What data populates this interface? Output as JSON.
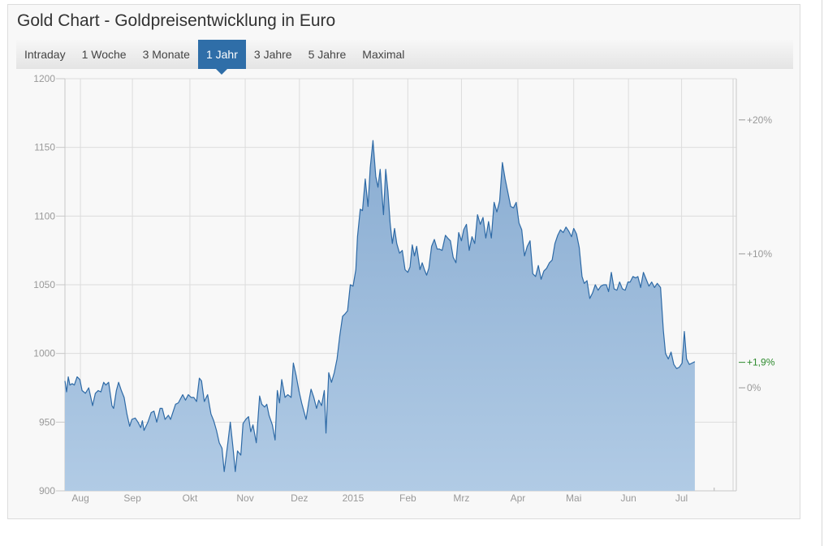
{
  "title": "Gold Chart - Goldpreisentwicklung in Euro",
  "tabs": [
    {
      "label": "Intraday"
    },
    {
      "label": "1 Woche"
    },
    {
      "label": "3 Monate"
    },
    {
      "label": "1 Jahr",
      "active": true
    },
    {
      "label": "3 Jahre"
    },
    {
      "label": "5 Jahre"
    },
    {
      "label": "Maximal"
    }
  ],
  "colors": {
    "line": "#2e6aa6",
    "area_top": "#8aadd2",
    "area_bottom": "#b1cbe5",
    "active_tab": "#2f6ea8",
    "change_label": "#2e8b2e"
  },
  "chart_data": {
    "type": "area",
    "title": "",
    "xlabel": "",
    "ylabel": "",
    "ylim": [
      900,
      1200
    ],
    "y_ticks": [
      900,
      950,
      1000,
      1050,
      1100,
      1150,
      1200
    ],
    "x_tick_labels": [
      "Aug",
      "Sep",
      "Okt",
      "Nov",
      "Dez",
      "2015",
      "Feb",
      "Mrz",
      "Apr",
      "Mai",
      "Jun",
      "Jul"
    ],
    "right_axis": {
      "baseline": 975,
      "ticks": [
        "+20%",
        "+10%",
        "0%"
      ],
      "ticks_pct": [
        20,
        10,
        0
      ]
    },
    "current_change_label": "+1,9%",
    "current_change_pct": 1.9,
    "grid": true,
    "legend": "none",
    "x_domain": [
      0,
      12.14
    ],
    "x_tick_positions": [
      0.28,
      1.22,
      2.26,
      3.26,
      4.24,
      5.21,
      6.2,
      7.17,
      8.19,
      9.2,
      10.19,
      11.15
    ],
    "series": [
      {
        "values": [
          [
            0,
            980
          ],
          [
            0.03,
            972
          ],
          [
            0.06,
            983
          ],
          [
            0.09,
            977
          ],
          [
            0.13,
            978
          ],
          [
            0.17,
            977
          ],
          [
            0.22,
            983
          ],
          [
            0.27,
            981
          ],
          [
            0.31,
            973
          ],
          [
            0.37,
            971
          ],
          [
            0.43,
            975
          ],
          [
            0.5,
            962
          ],
          [
            0.55,
            971
          ],
          [
            0.6,
            973
          ],
          [
            0.65,
            972
          ],
          [
            0.7,
            979
          ],
          [
            0.74,
            977
          ],
          [
            0.79,
            979
          ],
          [
            0.85,
            962
          ],
          [
            0.88,
            960
          ],
          [
            0.93,
            973
          ],
          [
            0.97,
            979
          ],
          [
            1.02,
            973
          ],
          [
            1.07,
            968
          ],
          [
            1.12,
            956
          ],
          [
            1.17,
            947
          ],
          [
            1.21,
            952
          ],
          [
            1.27,
            953
          ],
          [
            1.32,
            950
          ],
          [
            1.37,
            946
          ],
          [
            1.4,
            951
          ],
          [
            1.43,
            944
          ],
          [
            1.5,
            950
          ],
          [
            1.56,
            957
          ],
          [
            1.61,
            958
          ],
          [
            1.66,
            950
          ],
          [
            1.72,
            960
          ],
          [
            1.76,
            960
          ],
          [
            1.81,
            952
          ],
          [
            1.87,
            955
          ],
          [
            1.91,
            952
          ],
          [
            2.0,
            963
          ],
          [
            2.05,
            964
          ],
          [
            2.09,
            967
          ],
          [
            2.13,
            970
          ],
          [
            2.18,
            966
          ],
          [
            2.23,
            970
          ],
          [
            2.28,
            968
          ],
          [
            2.33,
            968
          ],
          [
            2.38,
            965
          ],
          [
            2.43,
            982
          ],
          [
            2.47,
            980
          ],
          [
            2.52,
            965
          ],
          [
            2.58,
            970
          ],
          [
            2.64,
            956
          ],
          [
            2.69,
            951
          ],
          [
            2.74,
            944
          ],
          [
            2.79,
            935
          ],
          [
            2.84,
            931
          ],
          [
            2.88,
            914
          ],
          [
            2.94,
            933
          ],
          [
            2.99,
            950
          ],
          [
            3.04,
            931
          ],
          [
            3.08,
            914
          ],
          [
            3.12,
            929
          ],
          [
            3.18,
            926
          ],
          [
            3.22,
            949
          ],
          [
            3.27,
            952
          ],
          [
            3.32,
            954
          ],
          [
            3.36,
            943
          ],
          [
            3.4,
            948
          ],
          [
            3.46,
            935
          ],
          [
            3.52,
            969
          ],
          [
            3.56,
            963
          ],
          [
            3.61,
            961
          ],
          [
            3.65,
            963
          ],
          [
            3.69,
            955
          ],
          [
            3.75,
            948
          ],
          [
            3.8,
            937
          ],
          [
            3.84,
            973
          ],
          [
            3.88,
            964
          ],
          [
            3.92,
            981
          ],
          [
            3.98,
            968
          ],
          [
            4.03,
            970
          ],
          [
            4.09,
            968
          ],
          [
            4.13,
            993
          ],
          [
            4.18,
            984
          ],
          [
            4.23,
            973
          ],
          [
            4.28,
            964
          ],
          [
            4.32,
            958
          ],
          [
            4.36,
            952
          ],
          [
            4.41,
            965
          ],
          [
            4.45,
            974
          ],
          [
            4.5,
            968
          ],
          [
            4.55,
            960
          ],
          [
            4.59,
            966
          ],
          [
            4.64,
            962
          ],
          [
            4.69,
            973
          ],
          [
            4.72,
            942
          ],
          [
            4.77,
            986
          ],
          [
            4.82,
            979
          ],
          [
            4.87,
            986
          ],
          [
            4.92,
            996
          ],
          [
            4.97,
            1013
          ],
          [
            5.02,
            1027
          ],
          [
            5.07,
            1029
          ],
          [
            5.11,
            1031
          ],
          [
            5.16,
            1050
          ],
          [
            5.21,
            1049
          ],
          [
            5.26,
            1061
          ],
          [
            5.29,
            1085
          ],
          [
            5.34,
            1105
          ],
          [
            5.38,
            1104
          ],
          [
            5.43,
            1127
          ],
          [
            5.48,
            1107
          ],
          [
            5.52,
            1135
          ],
          [
            5.57,
            1155
          ],
          [
            5.62,
            1129
          ],
          [
            5.66,
            1121
          ],
          [
            5.7,
            1134
          ],
          [
            5.76,
            1101
          ],
          [
            5.8,
            1134
          ],
          [
            5.84,
            1118
          ],
          [
            5.88,
            1095
          ],
          [
            5.92,
            1080
          ],
          [
            5.96,
            1091
          ],
          [
            6.0,
            1080
          ],
          [
            6.05,
            1073
          ],
          [
            6.1,
            1075
          ],
          [
            6.15,
            1061
          ],
          [
            6.2,
            1059
          ],
          [
            6.24,
            1063
          ],
          [
            6.28,
            1079
          ],
          [
            6.32,
            1071
          ],
          [
            6.36,
            1078
          ],
          [
            6.42,
            1061
          ],
          [
            6.46,
            1066
          ],
          [
            6.5,
            1061
          ],
          [
            6.54,
            1057
          ],
          [
            6.58,
            1062
          ],
          [
            6.63,
            1078
          ],
          [
            6.68,
            1083
          ],
          [
            6.73,
            1076
          ],
          [
            6.77,
            1076
          ],
          [
            6.82,
            1075
          ],
          [
            6.88,
            1086
          ],
          [
            6.92,
            1084
          ],
          [
            6.97,
            1082
          ],
          [
            7.02,
            1070
          ],
          [
            7.07,
            1066
          ],
          [
            7.12,
            1088
          ],
          [
            7.17,
            1082
          ],
          [
            7.21,
            1090
          ],
          [
            7.26,
            1094
          ],
          [
            7.31,
            1075
          ],
          [
            7.36,
            1085
          ],
          [
            7.41,
            1080
          ],
          [
            7.46,
            1101
          ],
          [
            7.51,
            1094
          ],
          [
            7.56,
            1099
          ],
          [
            7.61,
            1084
          ],
          [
            7.66,
            1096
          ],
          [
            7.71,
            1084
          ],
          [
            7.76,
            1110
          ],
          [
            7.81,
            1103
          ],
          [
            7.86,
            1111
          ],
          [
            7.91,
            1139
          ],
          [
            7.96,
            1127
          ],
          [
            8.01,
            1117
          ],
          [
            8.06,
            1107
          ],
          [
            8.11,
            1106
          ],
          [
            8.16,
            1110
          ],
          [
            8.21,
            1095
          ],
          [
            8.26,
            1090
          ],
          [
            8.31,
            1071
          ],
          [
            8.36,
            1078
          ],
          [
            8.41,
            1082
          ],
          [
            8.46,
            1058
          ],
          [
            8.51,
            1056
          ],
          [
            8.56,
            1064
          ],
          [
            8.61,
            1054
          ],
          [
            8.66,
            1060
          ],
          [
            8.71,
            1062
          ],
          [
            8.76,
            1066
          ],
          [
            8.81,
            1068
          ],
          [
            8.86,
            1080
          ],
          [
            8.91,
            1086
          ],
          [
            8.96,
            1090
          ],
          [
            9.01,
            1088
          ],
          [
            9.06,
            1092
          ],
          [
            9.11,
            1089
          ],
          [
            9.16,
            1085
          ],
          [
            9.2,
            1091
          ],
          [
            9.25,
            1087
          ],
          [
            9.3,
            1077
          ],
          [
            9.35,
            1056
          ],
          [
            9.39,
            1051
          ],
          [
            9.44,
            1053
          ],
          [
            9.49,
            1040
          ],
          [
            9.54,
            1044
          ],
          [
            9.59,
            1050
          ],
          [
            9.64,
            1046
          ],
          [
            9.69,
            1049
          ],
          [
            9.74,
            1050
          ],
          [
            9.79,
            1050
          ],
          [
            9.83,
            1045
          ],
          [
            9.88,
            1059
          ],
          [
            9.93,
            1047
          ],
          [
            9.98,
            1046
          ],
          [
            10.03,
            1052
          ],
          [
            10.08,
            1047
          ],
          [
            10.13,
            1046
          ],
          [
            10.18,
            1052
          ],
          [
            10.22,
            1052
          ],
          [
            10.27,
            1056
          ],
          [
            10.32,
            1055
          ],
          [
            10.36,
            1056
          ],
          [
            10.41,
            1048
          ],
          [
            10.46,
            1059
          ],
          [
            10.51,
            1054
          ],
          [
            10.56,
            1049
          ],
          [
            10.61,
            1052
          ],
          [
            10.66,
            1048
          ],
          [
            10.71,
            1051
          ],
          [
            10.77,
            1048
          ],
          [
            10.82,
            1017
          ],
          [
            10.86,
            1000
          ],
          [
            10.91,
            996
          ],
          [
            10.96,
            1001
          ],
          [
            11.01,
            992
          ],
          [
            11.06,
            989
          ],
          [
            11.11,
            990
          ],
          [
            11.16,
            993
          ],
          [
            11.2,
            1016
          ],
          [
            11.24,
            996
          ],
          [
            11.29,
            992
          ],
          [
            11.34,
            993
          ],
          [
            11.39,
            994
          ]
        ]
      }
    ]
  }
}
